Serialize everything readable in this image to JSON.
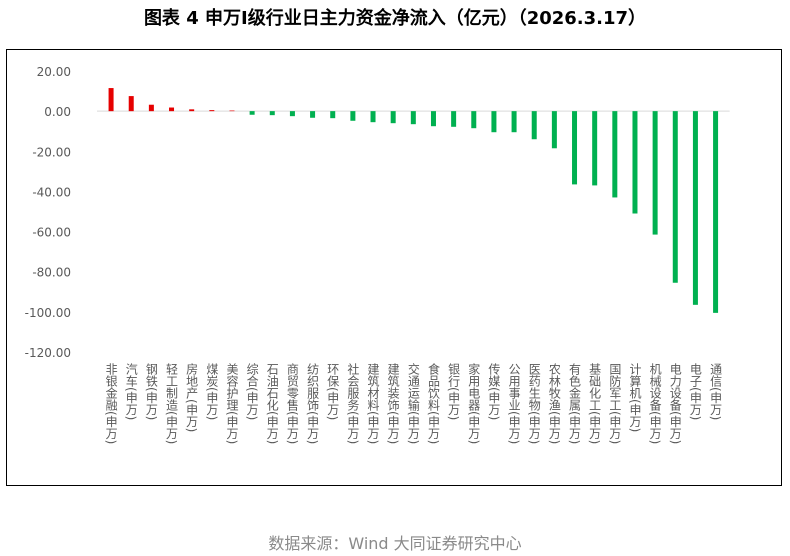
{
  "title": "图表 4  申万Ⅰ级行业日主力资金净流入（亿元）（2026.3.17）",
  "source": "数据来源：Wind 大同证券研究中心",
  "colors": {
    "positive": "#e60000",
    "negative": "#00b050",
    "axis_text": "#595959",
    "baseline": "#d9d9d9"
  },
  "chart_data": {
    "type": "bar",
    "title": "",
    "xlabel": "",
    "ylabel": "",
    "ylim": [
      -120,
      20
    ],
    "yticks": [
      "20.00",
      "0.00",
      "-20.00",
      "-40.00",
      "-60.00",
      "-80.00",
      "-100.00",
      "-120.00"
    ],
    "grid": false,
    "legend": "none",
    "categories": [
      "非银金融(申万)",
      "汽车(申万)",
      "钢铁(申万)",
      "轻工制造(申万)",
      "房地产(申万)",
      "煤炭(申万)",
      "美容护理(申万)",
      "综合(申万)",
      "石油石化(申万)",
      "商贸零售(申万)",
      "纺织服饰(申万)",
      "环保(申万)",
      "社会服务(申万)",
      "建筑材料(申万)",
      "建筑装饰(申万)",
      "交通运输(申万)",
      "食品饮料(申万)",
      "银行(申万)",
      "家用电器(申万)",
      "传媒(申万)",
      "公用事业(申万)",
      "医药生物(申万)",
      "农林牧渔(申万)",
      "有色金属(申万)",
      "基础化工(申万)",
      "国防军工(申万)",
      "计算机(申万)",
      "机械设备(申万)",
      "电力设备(申万)",
      "电子(申万)",
      "通信(申万)"
    ],
    "values": [
      11.5,
      7.5,
      3.2,
      1.8,
      0.9,
      0.5,
      0.3,
      -1.8,
      -2.0,
      -2.5,
      -3.3,
      -3.5,
      -4.8,
      -5.5,
      -6.0,
      -6.5,
      -7.5,
      -7.8,
      -8.5,
      -10.5,
      -10.5,
      -14.0,
      -18.5,
      -36.5,
      -37.0,
      -43.0,
      -51.0,
      -61.5,
      -85.5,
      -96.5,
      -100.5
    ]
  }
}
